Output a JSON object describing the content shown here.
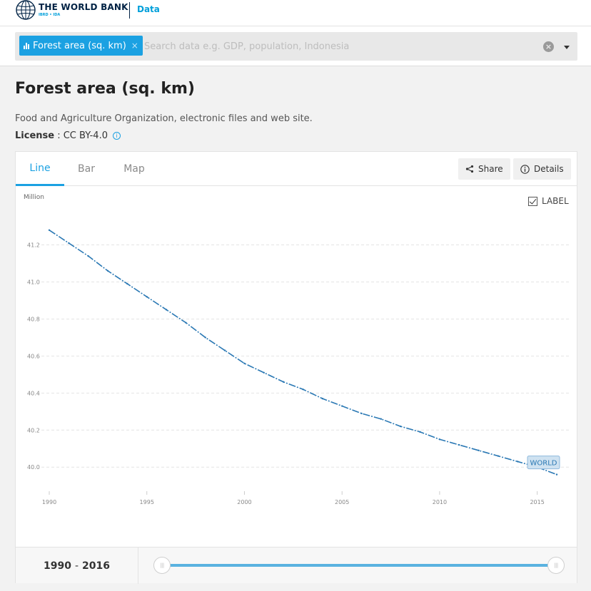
{
  "header": {
    "brand": "THE WORLD BANK",
    "brand_sub": "IBRD • IDA",
    "section": "Data"
  },
  "search": {
    "chip_label": "Forest area (sq. km)",
    "chip_remove": "×",
    "value": "",
    "placeholder": "Search data e.g. GDP, population, Indonesia"
  },
  "indicator": {
    "title": "Forest area (sq. km)",
    "source": "Food and Agriculture Organization, electronic files and web site.",
    "license_label": "License",
    "license_value": " : CC BY-4.0"
  },
  "tabs": [
    {
      "label": "Line",
      "active": true
    },
    {
      "label": "Bar",
      "active": false
    },
    {
      "label": "Map",
      "active": false
    }
  ],
  "actions": {
    "share_label": "Share",
    "details_label": "Details"
  },
  "label_toggle": {
    "text": "LABEL",
    "checked": true
  },
  "chart_data": {
    "type": "line",
    "title": "",
    "xlabel": "",
    "ylabel": "",
    "unit_label": "Million",
    "x": [
      1990,
      1991,
      1992,
      1993,
      1994,
      1995,
      1996,
      1997,
      1998,
      1999,
      2000,
      2001,
      2002,
      2003,
      2004,
      2005,
      2006,
      2007,
      2008,
      2009,
      2010,
      2011,
      2012,
      2013,
      2014,
      2015,
      2016
    ],
    "series": [
      {
        "name": "WORLD",
        "color": "#2a78b4",
        "values": [
          41.28,
          41.21,
          41.14,
          41.06,
          40.99,
          40.92,
          40.85,
          40.78,
          40.7,
          40.63,
          40.56,
          40.51,
          40.46,
          40.42,
          40.37,
          40.33,
          40.29,
          40.26,
          40.22,
          40.19,
          40.15,
          40.12,
          40.09,
          40.06,
          40.03,
          40.0,
          39.96
        ]
      }
    ],
    "xlim": [
      1990,
      2016
    ],
    "ylim": [
      39.87,
      41.36
    ],
    "yticks": [
      40.0,
      40.2,
      40.4,
      40.6,
      40.8,
      41.0,
      41.2
    ],
    "ytick_labels": [
      "40.0",
      "40.2",
      "40.4",
      "40.6",
      "40.8",
      "41.0",
      "41.2"
    ],
    "xticks": [
      1990,
      1995,
      2000,
      2005,
      2010,
      2015
    ],
    "xtick_labels": [
      "1990",
      "1995",
      "2000",
      "2005",
      "2010",
      "2015"
    ],
    "grid": true,
    "series_label_box": "end-of-line"
  },
  "range": {
    "start": "1990",
    "separator": "-",
    "end": "2016",
    "handle_glyph": "|||"
  }
}
